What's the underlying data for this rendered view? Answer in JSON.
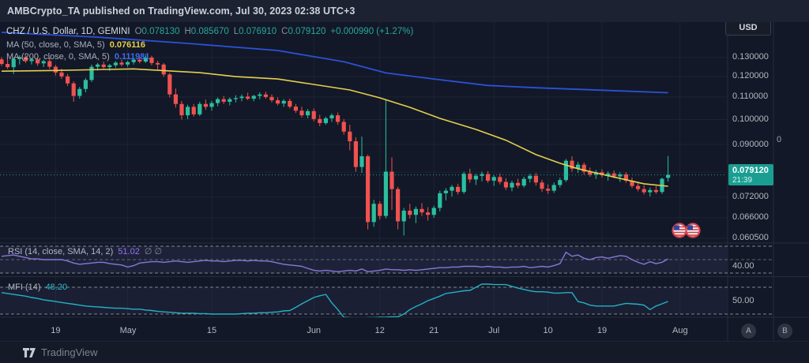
{
  "topbar": {
    "attribution": "AMBCrypto_TA published on TradingView.com, Jul 30, 2023 02:38 UTC+3"
  },
  "legend": {
    "symbol": "CHZ / U.S. Dollar, 1D, GEMINI",
    "o_label": "O",
    "o": "0.078130",
    "h_label": "H",
    "h": "0.085670",
    "l_label": "L",
    "l": "0.076910",
    "c_label": "C",
    "c": "0.079120",
    "change": "+0.000990 (+1.27%)",
    "ma50_label": "MA (50, close, 0, SMA, 5)",
    "ma50_value": "0.076116",
    "ma200_label": "MA (200, close, 0, SMA, 5)",
    "ma200_value": "0.111981"
  },
  "rsi_legend": {
    "label": "RSI (14, close, SMA, 14, 2)",
    "value": "51.02",
    "suffix": "∅ ∅"
  },
  "mfi_legend": {
    "label": "MFI (14)",
    "value": "48.20"
  },
  "axis": {
    "currency_button": "USD",
    "price_labels": [
      {
        "text": "0.130000",
        "price": 0.13
      },
      {
        "text": "0.120000",
        "price": 0.12
      },
      {
        "text": "0.110000",
        "price": 0.11
      },
      {
        "text": "0.100000",
        "price": 0.1
      },
      {
        "text": "0.090000",
        "price": 0.09
      },
      {
        "text": "0.072000",
        "price": 0.072
      },
      {
        "text": "0.066000",
        "price": 0.066
      },
      {
        "text": "0.060500",
        "price": 0.0605
      }
    ],
    "price_tag": {
      "price": "0.079120",
      "countdown": "21:39"
    },
    "rsi_axis_label": {
      "text": "40.00",
      "value": 40
    },
    "mfi_axis_label": {
      "text": "50.00",
      "value": 50
    },
    "overlay_zero": "0",
    "button_a": "A",
    "button_b": "B"
  },
  "footer": {
    "brand": "TradingView"
  },
  "colors": {
    "up": "#2bbf9e",
    "down": "#f0524f",
    "ma50": "#e5cf4e",
    "ma200": "#2c51d8",
    "rsi": "#8878d8",
    "mfi": "#26b0c4",
    "price_line": "#2ea092",
    "tag_bg": "#1a9e92",
    "grid": "rgba(150,160,190,0.08)",
    "separator": "#262c3b",
    "dashed_level": "#9a9ea8",
    "band_fill": "rgba(140,130,210,0.10)"
  },
  "chart_data": {
    "type": "candlestick",
    "symbol": "CHZ/USD",
    "interval": "1D",
    "exchange": "GEMINI",
    "price_scale": "log",
    "ylim": [
      0.0575,
      0.135
    ],
    "last_bar": {
      "open": 0.07813,
      "high": 0.08567,
      "low": 0.07691,
      "close": 0.07912,
      "change": 0.00099,
      "change_pct": 1.27,
      "countdown": "21:39"
    },
    "xaxis_ticks": [
      {
        "label": "19",
        "day": 9
      },
      {
        "label": "May",
        "day": 21
      },
      {
        "label": "15",
        "day": 35
      },
      {
        "label": "Jun",
        "day": 52
      },
      {
        "label": "12",
        "day": 63
      },
      {
        "label": "21",
        "day": 72
      },
      {
        "label": "Jul",
        "day": 82
      },
      {
        "label": "10",
        "day": 91
      },
      {
        "label": "19",
        "day": 100
      },
      {
        "label": "Aug",
        "day": 113
      }
    ],
    "candles_ohlc": [
      [
        0.129,
        0.1302,
        0.1255,
        0.1265
      ],
      [
        0.1265,
        0.1292,
        0.1238,
        0.1248
      ],
      [
        0.1248,
        0.13,
        0.1212,
        0.1292
      ],
      [
        0.1292,
        0.1312,
        0.1262,
        0.1302
      ],
      [
        0.1302,
        0.1315,
        0.127,
        0.128
      ],
      [
        0.128,
        0.1298,
        0.1262,
        0.129
      ],
      [
        0.129,
        0.1302,
        0.1255,
        0.1268
      ],
      [
        0.1268,
        0.1288,
        0.1248,
        0.128
      ],
      [
        0.128,
        0.1298,
        0.1238,
        0.125
      ],
      [
        0.125,
        0.126,
        0.1205,
        0.122
      ],
      [
        0.122,
        0.124,
        0.1188,
        0.12
      ],
      [
        0.12,
        0.1212,
        0.1152,
        0.1165
      ],
      [
        0.1165,
        0.1175,
        0.1078,
        0.1105
      ],
      [
        0.1105,
        0.1148,
        0.1092,
        0.1138
      ],
      [
        0.1138,
        0.1192,
        0.1122,
        0.1182
      ],
      [
        0.1182,
        0.1262,
        0.1172,
        0.125
      ],
      [
        0.125,
        0.127,
        0.123,
        0.1262
      ],
      [
        0.1262,
        0.1278,
        0.124,
        0.1248
      ],
      [
        0.1248,
        0.1265,
        0.1228,
        0.1258
      ],
      [
        0.1258,
        0.128,
        0.1245,
        0.1272
      ],
      [
        0.1272,
        0.1288,
        0.1252,
        0.1262
      ],
      [
        0.1262,
        0.1282,
        0.125,
        0.1275
      ],
      [
        0.1275,
        0.1295,
        0.1262,
        0.1288
      ],
      [
        0.1288,
        0.1302,
        0.1268,
        0.1278
      ],
      [
        0.1278,
        0.1312,
        0.127,
        0.13
      ],
      [
        0.13,
        0.131,
        0.1258,
        0.127
      ],
      [
        0.127,
        0.1282,
        0.1235,
        0.1262
      ],
      [
        0.1262,
        0.127,
        0.1198,
        0.121
      ],
      [
        0.121,
        0.1218,
        0.1098,
        0.1112
      ],
      [
        0.1112,
        0.114,
        0.1052,
        0.1068
      ],
      [
        0.1068,
        0.1082,
        0.1,
        0.1018
      ],
      [
        0.1018,
        0.1065,
        0.1002,
        0.1055
      ],
      [
        0.1055,
        0.1068,
        0.1012,
        0.1022
      ],
      [
        0.1022,
        0.1078,
        0.1015,
        0.1068
      ],
      [
        0.1068,
        0.1088,
        0.1042,
        0.1055
      ],
      [
        0.1055,
        0.1082,
        0.1038,
        0.1072
      ],
      [
        0.1072,
        0.1098,
        0.1058,
        0.109
      ],
      [
        0.109,
        0.1105,
        0.1068,
        0.1078
      ],
      [
        0.1078,
        0.1098,
        0.1062,
        0.109
      ],
      [
        0.109,
        0.1108,
        0.1075,
        0.1095
      ],
      [
        0.1095,
        0.1112,
        0.108,
        0.1102
      ],
      [
        0.1102,
        0.112,
        0.1085,
        0.1092
      ],
      [
        0.1092,
        0.111,
        0.108,
        0.1105
      ],
      [
        0.1105,
        0.1122,
        0.109,
        0.1112
      ],
      [
        0.1112,
        0.1125,
        0.1092,
        0.11
      ],
      [
        0.11,
        0.1112,
        0.1075,
        0.1085
      ],
      [
        0.1085,
        0.1098,
        0.1062,
        0.107
      ],
      [
        0.107,
        0.109,
        0.1055,
        0.1082
      ],
      [
        0.1082,
        0.1092,
        0.1048,
        0.1056
      ],
      [
        0.1056,
        0.1068,
        0.1028,
        0.1038
      ],
      [
        0.1038,
        0.1055,
        0.1008,
        0.1018
      ],
      [
        0.1018,
        0.1045,
        0.1005,
        0.1036
      ],
      [
        0.1036,
        0.1048,
        0.0992,
        0.1002
      ],
      [
        0.1002,
        0.102,
        0.0972,
        0.0985
      ],
      [
        0.0985,
        0.1012,
        0.0978,
        0.1005
      ],
      [
        0.1005,
        0.1026,
        0.099,
        0.1018
      ],
      [
        0.1018,
        0.103,
        0.0978,
        0.099
      ],
      [
        0.099,
        0.1002,
        0.0938,
        0.095
      ],
      [
        0.095,
        0.0978,
        0.0878,
        0.0912
      ],
      [
        0.0912,
        0.0928,
        0.0802,
        0.0818
      ],
      [
        0.0818,
        0.093,
        0.0798,
        0.0856
      ],
      [
        0.0856,
        0.0862,
        0.0628,
        0.0648
      ],
      [
        0.0648,
        0.0712,
        0.0635,
        0.07
      ],
      [
        0.07,
        0.0708,
        0.0655,
        0.0665
      ],
      [
        0.0665,
        0.109,
        0.0658,
        0.0802
      ],
      [
        0.0802,
        0.0852,
        0.0682,
        0.0745
      ],
      [
        0.0745,
        0.0752,
        0.0628,
        0.065
      ],
      [
        0.065,
        0.0688,
        0.0612,
        0.068
      ],
      [
        0.068,
        0.07,
        0.0658,
        0.0668
      ],
      [
        0.0668,
        0.0692,
        0.0645,
        0.0685
      ],
      [
        0.0685,
        0.0702,
        0.0665,
        0.0675
      ],
      [
        0.0675,
        0.069,
        0.0652,
        0.0668
      ],
      [
        0.0668,
        0.0695,
        0.066,
        0.0688
      ],
      [
        0.0688,
        0.074,
        0.0678,
        0.0732
      ],
      [
        0.0732,
        0.0748,
        0.071,
        0.074
      ],
      [
        0.074,
        0.0758,
        0.0722,
        0.0752
      ],
      [
        0.0752,
        0.0762,
        0.0728,
        0.0736
      ],
      [
        0.0736,
        0.0802,
        0.073,
        0.0795
      ],
      [
        0.0795,
        0.0812,
        0.0765,
        0.0776
      ],
      [
        0.0776,
        0.0795,
        0.0758,
        0.0788
      ],
      [
        0.0788,
        0.0802,
        0.077,
        0.0794
      ],
      [
        0.0794,
        0.0804,
        0.0765,
        0.0772
      ],
      [
        0.0772,
        0.079,
        0.0755,
        0.0784
      ],
      [
        0.0784,
        0.0796,
        0.076,
        0.0768
      ],
      [
        0.0768,
        0.078,
        0.0742,
        0.075
      ],
      [
        0.075,
        0.0772,
        0.0738,
        0.0765
      ],
      [
        0.0765,
        0.0778,
        0.0748,
        0.0756
      ],
      [
        0.0756,
        0.0785,
        0.075,
        0.0778
      ],
      [
        0.0778,
        0.0795,
        0.0766,
        0.0788
      ],
      [
        0.0788,
        0.0798,
        0.0756,
        0.0766
      ],
      [
        0.0766,
        0.0775,
        0.0736,
        0.0746
      ],
      [
        0.0746,
        0.076,
        0.073,
        0.074
      ],
      [
        0.074,
        0.0766,
        0.0733,
        0.0758
      ],
      [
        0.0758,
        0.0782,
        0.075,
        0.0774
      ],
      [
        0.0774,
        0.0846,
        0.0768,
        0.084
      ],
      [
        0.084,
        0.0856,
        0.0802,
        0.0812
      ],
      [
        0.0812,
        0.0836,
        0.0798,
        0.0826
      ],
      [
        0.0826,
        0.0834,
        0.0792,
        0.0802
      ],
      [
        0.0802,
        0.0816,
        0.0785,
        0.0792
      ],
      [
        0.0792,
        0.0808,
        0.0778,
        0.08
      ],
      [
        0.08,
        0.081,
        0.0782,
        0.079
      ],
      [
        0.079,
        0.0803,
        0.0772,
        0.0796
      ],
      [
        0.0796,
        0.0806,
        0.078,
        0.0786
      ],
      [
        0.0786,
        0.08,
        0.0768,
        0.0793
      ],
      [
        0.0793,
        0.08,
        0.0765,
        0.0772
      ],
      [
        0.0772,
        0.0782,
        0.0748,
        0.0755
      ],
      [
        0.0755,
        0.0768,
        0.0738,
        0.0745
      ],
      [
        0.0745,
        0.0757,
        0.0728,
        0.0735
      ],
      [
        0.0735,
        0.075,
        0.0722,
        0.0742
      ],
      [
        0.0742,
        0.0755,
        0.073,
        0.0736
      ],
      [
        0.0736,
        0.0782,
        0.073,
        0.0778
      ],
      [
        0.07813,
        0.08567,
        0.07691,
        0.07912
      ]
    ],
    "ma50_points": [
      [
        0,
        0.1227
      ],
      [
        8,
        0.123
      ],
      [
        22,
        0.1239
      ],
      [
        33,
        0.1219
      ],
      [
        39,
        0.1199
      ],
      [
        46,
        0.1187
      ],
      [
        52,
        0.116
      ],
      [
        58,
        0.1133
      ],
      [
        63,
        0.1096
      ],
      [
        68,
        0.1053
      ],
      [
        73,
        0.1005
      ],
      [
        79,
        0.0959
      ],
      [
        84,
        0.0916
      ],
      [
        89,
        0.0862
      ],
      [
        93,
        0.0831
      ],
      [
        96,
        0.0812
      ],
      [
        100,
        0.0793
      ],
      [
        104,
        0.0775
      ],
      [
        107,
        0.0762
      ],
      [
        111,
        0.0754
      ]
    ],
    "ma200_points": [
      [
        0,
        0.1446
      ],
      [
        16,
        0.1417
      ],
      [
        31,
        0.138
      ],
      [
        46,
        0.1339
      ],
      [
        57,
        0.1277
      ],
      [
        64,
        0.1218
      ],
      [
        72,
        0.1187
      ],
      [
        81,
        0.1155
      ],
      [
        89,
        0.1144
      ],
      [
        100,
        0.1132
      ],
      [
        111,
        0.112
      ]
    ],
    "rsi": {
      "last": 51.02,
      "levels": [
        70,
        50,
        30
      ],
      "range_shown": [
        75,
        25
      ],
      "values": [
        55,
        56,
        57,
        55,
        53,
        51,
        51,
        50,
        50,
        50,
        50,
        48,
        45,
        43,
        44,
        45,
        46,
        46,
        44,
        43,
        42,
        39,
        41,
        45,
        46,
        47,
        47,
        46,
        47,
        48,
        47,
        46,
        47,
        48,
        49,
        48,
        48,
        47,
        48,
        49,
        49,
        48,
        49,
        48,
        48,
        47,
        45,
        43,
        42,
        41,
        40,
        37,
        34,
        33,
        34,
        33,
        32,
        33,
        34,
        33,
        36,
        32,
        33,
        34,
        36,
        35,
        35,
        34,
        35,
        34,
        35,
        36,
        37,
        38,
        38,
        39,
        39,
        40,
        40,
        40,
        39,
        40,
        39,
        39,
        38,
        39,
        39,
        40,
        38,
        39,
        40,
        39,
        41,
        44,
        61,
        55,
        57,
        52,
        50,
        53,
        54,
        52,
        54,
        56,
        55,
        50,
        46,
        43,
        47,
        44,
        46,
        51.02
      ]
    },
    "mfi": {
      "last": 48.2,
      "levels": [
        80,
        20
      ],
      "range_shown": [
        88,
        12
      ],
      "values": [
        68,
        66,
        64,
        62,
        60,
        57,
        55,
        52,
        50,
        48,
        46,
        44,
        42,
        40,
        38,
        37,
        36,
        35,
        34,
        33,
        33,
        32,
        31,
        31,
        29,
        28,
        26,
        25,
        24,
        23,
        22,
        22,
        22,
        21,
        21,
        20,
        20,
        20,
        20,
        20,
        21,
        22,
        22,
        23,
        23,
        24,
        25,
        27,
        28,
        35,
        43,
        50,
        57,
        61,
        64,
        45,
        30,
        13,
        12,
        11,
        11,
        12,
        12,
        13,
        13,
        14,
        14,
        20,
        30,
        37,
        43,
        50,
        55,
        60,
        66,
        68,
        70,
        72,
        73,
        80,
        87,
        87,
        86,
        86,
        86,
        82,
        78,
        75,
        72,
        70,
        70,
        69,
        67,
        67,
        68,
        68,
        48,
        45,
        40,
        38,
        38,
        38,
        38,
        41,
        44,
        43,
        42,
        40,
        30,
        38,
        43,
        48.2
      ]
    }
  }
}
